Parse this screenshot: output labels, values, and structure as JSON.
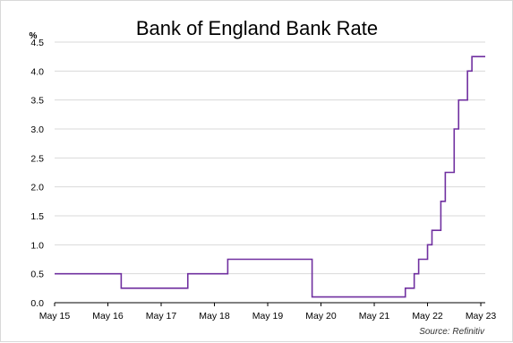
{
  "chart_data": {
    "type": "line",
    "title": "Bank of England Bank Rate",
    "ylabel": "%",
    "xlabel": "",
    "source": "Source: Refinitiv",
    "ylim": [
      0,
      4.5
    ],
    "yticks": [
      "0.0",
      "0.5",
      "1.0",
      "1.5",
      "2.0",
      "2.5",
      "3.0",
      "3.5",
      "4.0",
      "4.5"
    ],
    "xticks": [
      "May 15",
      "May 16",
      "May 17",
      "May 18",
      "May 19",
      "May 20",
      "May 21",
      "May 22",
      "May 23"
    ],
    "xlim": [
      "2015-05",
      "2023-06"
    ],
    "grid": "horizontal",
    "line_color": "#7030a0",
    "series": [
      {
        "step": true,
        "points": [
          {
            "x": "2015-05",
            "y": 0.5
          },
          {
            "x": "2016-08",
            "y": 0.25
          },
          {
            "x": "2017-11",
            "y": 0.5
          },
          {
            "x": "2018-08",
            "y": 0.75
          },
          {
            "x": "2020-03",
            "y": 0.1
          },
          {
            "x": "2021-12",
            "y": 0.25
          },
          {
            "x": "2022-02",
            "y": 0.5
          },
          {
            "x": "2022-03",
            "y": 0.75
          },
          {
            "x": "2022-05",
            "y": 1.0
          },
          {
            "x": "2022-06",
            "y": 1.25
          },
          {
            "x": "2022-08",
            "y": 1.75
          },
          {
            "x": "2022-09",
            "y": 2.25
          },
          {
            "x": "2022-11",
            "y": 3.0
          },
          {
            "x": "2022-12",
            "y": 3.5
          },
          {
            "x": "2023-02",
            "y": 4.0
          },
          {
            "x": "2023-03",
            "y": 4.25
          },
          {
            "x": "2023-06",
            "y": 4.25
          }
        ]
      }
    ]
  }
}
